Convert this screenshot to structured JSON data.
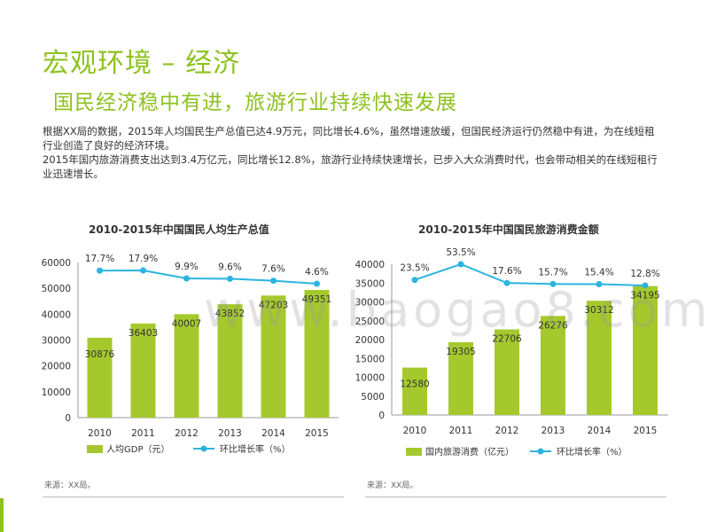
{
  "page": {
    "title": "宏观环境 – 经济",
    "subtitle": "国民经济稳中有进，旅游行业持续快速发展",
    "paragraphs": [
      "根据XX局的数据，2015年人均国民生产总值已达4.9万元，同比增长4.6%，虽然增速放缓，但国民经济运行仍然稳中有进，为在线短租行业创造了良好的经济环境。",
      "2015年国内旅游消费支出达到3.4万亿元，同比增长12.8%，旅游行业持续快速增长，已步入大众消费时代，也会带动相关的在线短租行业迅速增长。"
    ],
    "watermark": "www.baogao8.com"
  },
  "colors": {
    "title": "#8dc21f",
    "bar": "#a5c92d",
    "line": "#2cb4e0",
    "axis": "#999999",
    "text": "#333333"
  },
  "chart_data": [
    {
      "type": "bar",
      "title": "2010-2015年中国国民人均生产总值",
      "categories": [
        "2010",
        "2011",
        "2012",
        "2013",
        "2014",
        "2015"
      ],
      "series": [
        {
          "name": "人均GDP（元）",
          "kind": "bar",
          "values": [
            30876,
            36403,
            40007,
            43852,
            47203,
            49351
          ],
          "labels": [
            "30876",
            "36403",
            "40007",
            "43852",
            "47203",
            "49351"
          ]
        },
        {
          "name": "环比增长率（%）",
          "kind": "line",
          "values": [
            17.7,
            17.9,
            9.9,
            9.6,
            7.6,
            4.6
          ],
          "labels": [
            "17.7%",
            "17.9%",
            "9.9%",
            "9.6%",
            "7.6%",
            "4.6%"
          ]
        }
      ],
      "ylim": [
        0,
        60000
      ],
      "yticks": [
        "0",
        "10000",
        "20000",
        "30000",
        "40000",
        "50000",
        "60000"
      ],
      "legend_position": "bottom",
      "source": "来源：XX局。"
    },
    {
      "type": "bar",
      "title": "2010-2015年中国国民旅游消费金额",
      "categories": [
        "2010",
        "2011",
        "2012",
        "2013",
        "2014",
        "2015"
      ],
      "series": [
        {
          "name": "国内旅游消费（亿元）",
          "kind": "bar",
          "values": [
            12580,
            19305,
            22706,
            26276,
            30312,
            34195
          ],
          "labels": [
            "12580",
            "19305",
            "22706",
            "26276",
            "30312",
            "34195"
          ]
        },
        {
          "name": "环比增长率（%）",
          "kind": "line",
          "values": [
            23.5,
            53.5,
            17.6,
            15.7,
            15.4,
            12.8
          ],
          "labels": [
            "23.5%",
            "53.5%",
            "17.6%",
            "15.7%",
            "15.4%",
            "12.8%"
          ]
        }
      ],
      "ylim": [
        0,
        40000
      ],
      "yticks": [
        "0",
        "5000",
        "10000",
        "15000",
        "20000",
        "25000",
        "30000",
        "35000",
        "40000"
      ],
      "legend_position": "bottom",
      "source": "来源：XX局。"
    }
  ]
}
